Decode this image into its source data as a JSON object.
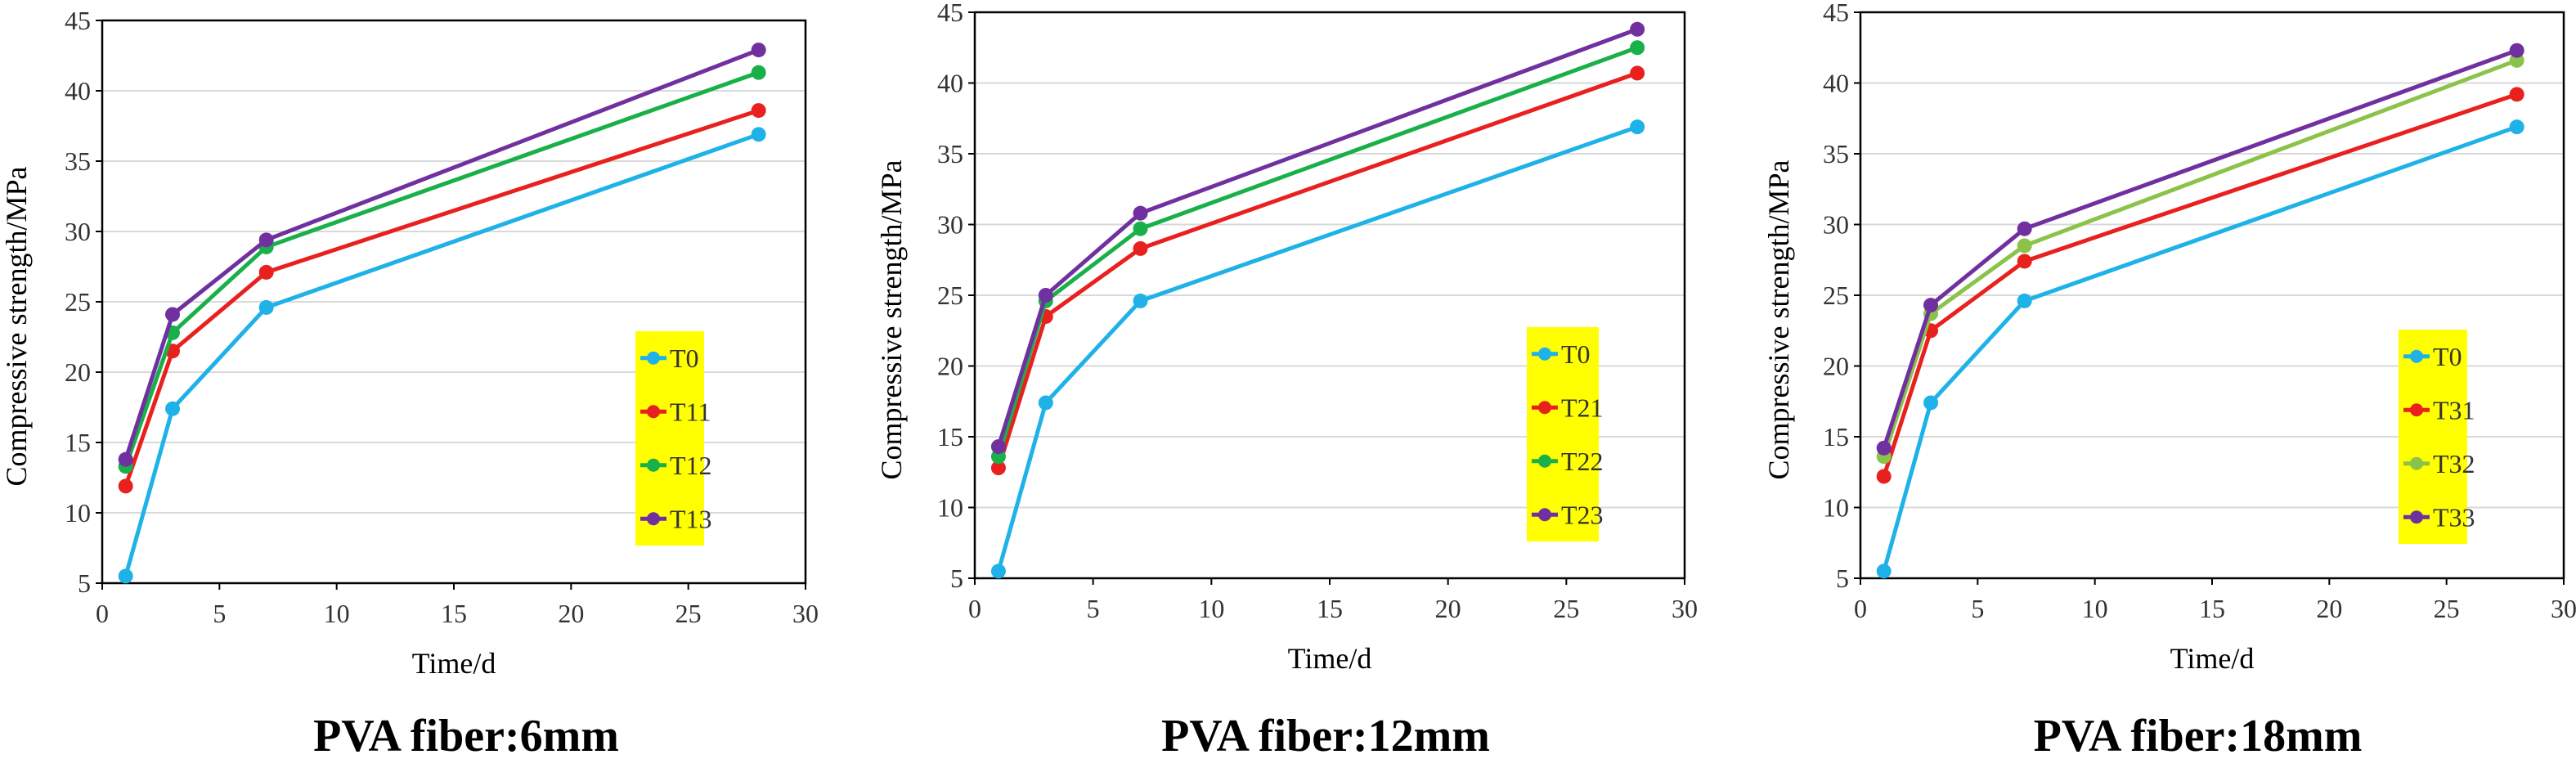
{
  "chart_data": [
    {
      "type": "line",
      "title": "PVA fiber:6mm",
      "xlabel": "Time/d",
      "ylabel": "Compressive strength/MPa",
      "xlim": [
        0,
        30
      ],
      "ylim": [
        5,
        45
      ],
      "xticks": [
        0,
        5,
        10,
        15,
        20,
        25,
        30
      ],
      "yticks": [
        5,
        10,
        15,
        20,
        25,
        30,
        35,
        40,
        45
      ],
      "grid": "horizontal",
      "legend": "right, yellow box",
      "x": [
        1,
        3,
        7,
        28
      ],
      "series": [
        {
          "name": "T0",
          "color": "#1fb2e8",
          "values": [
            5.5,
            17.4,
            24.6,
            36.9
          ]
        },
        {
          "name": "T11",
          "color": "#e8211e",
          "values": [
            11.9,
            21.5,
            27.1,
            38.6
          ]
        },
        {
          "name": "T12",
          "color": "#19b04a",
          "values": [
            13.3,
            22.8,
            28.9,
            41.3
          ]
        },
        {
          "name": "T13",
          "color": "#7030a0",
          "values": [
            13.8,
            24.1,
            29.4,
            42.9
          ]
        }
      ]
    },
    {
      "type": "line",
      "title": "PVA fiber:12mm",
      "xlabel": "Time/d",
      "ylabel": "Compressive strength/MPa",
      "xlim": [
        0,
        30
      ],
      "ylim": [
        5,
        45
      ],
      "xticks": [
        0,
        5,
        10,
        15,
        20,
        25,
        30
      ],
      "yticks": [
        5,
        10,
        15,
        20,
        25,
        30,
        35,
        40,
        45
      ],
      "grid": "horizontal",
      "legend": "right, yellow box",
      "x": [
        1,
        3,
        7,
        28
      ],
      "series": [
        {
          "name": "T0",
          "color": "#1fb2e8",
          "values": [
            5.5,
            17.4,
            24.6,
            36.9
          ]
        },
        {
          "name": "T21",
          "color": "#e8211e",
          "values": [
            12.8,
            23.5,
            28.3,
            40.7
          ]
        },
        {
          "name": "T22",
          "color": "#19b04a",
          "values": [
            13.6,
            24.6,
            29.7,
            42.5
          ]
        },
        {
          "name": "T23",
          "color": "#7030a0",
          "values": [
            14.3,
            25.0,
            30.8,
            43.8
          ]
        }
      ]
    },
    {
      "type": "line",
      "title": "PVA fiber:18mm",
      "xlabel": "Time/d",
      "ylabel": "Compressive strength/MPa",
      "xlim": [
        0,
        30
      ],
      "ylim": [
        5,
        45
      ],
      "xticks": [
        0,
        5,
        10,
        15,
        20,
        25,
        30
      ],
      "yticks": [
        5,
        10,
        15,
        20,
        25,
        30,
        35,
        40,
        45
      ],
      "grid": "horizontal",
      "legend": "right, yellow box",
      "x": [
        1,
        3,
        7,
        28
      ],
      "series": [
        {
          "name": "T0",
          "color": "#1fb2e8",
          "values": [
            5.5,
            17.4,
            24.6,
            36.9
          ]
        },
        {
          "name": "T31",
          "color": "#e8211e",
          "values": [
            12.2,
            22.5,
            27.4,
            39.2
          ]
        },
        {
          "name": "T32",
          "color": "#8bc34a",
          "values": [
            13.6,
            23.7,
            28.5,
            41.6
          ]
        },
        {
          "name": "T33",
          "color": "#7030a0",
          "values": [
            14.2,
            24.3,
            29.7,
            42.3
          ]
        }
      ]
    }
  ]
}
